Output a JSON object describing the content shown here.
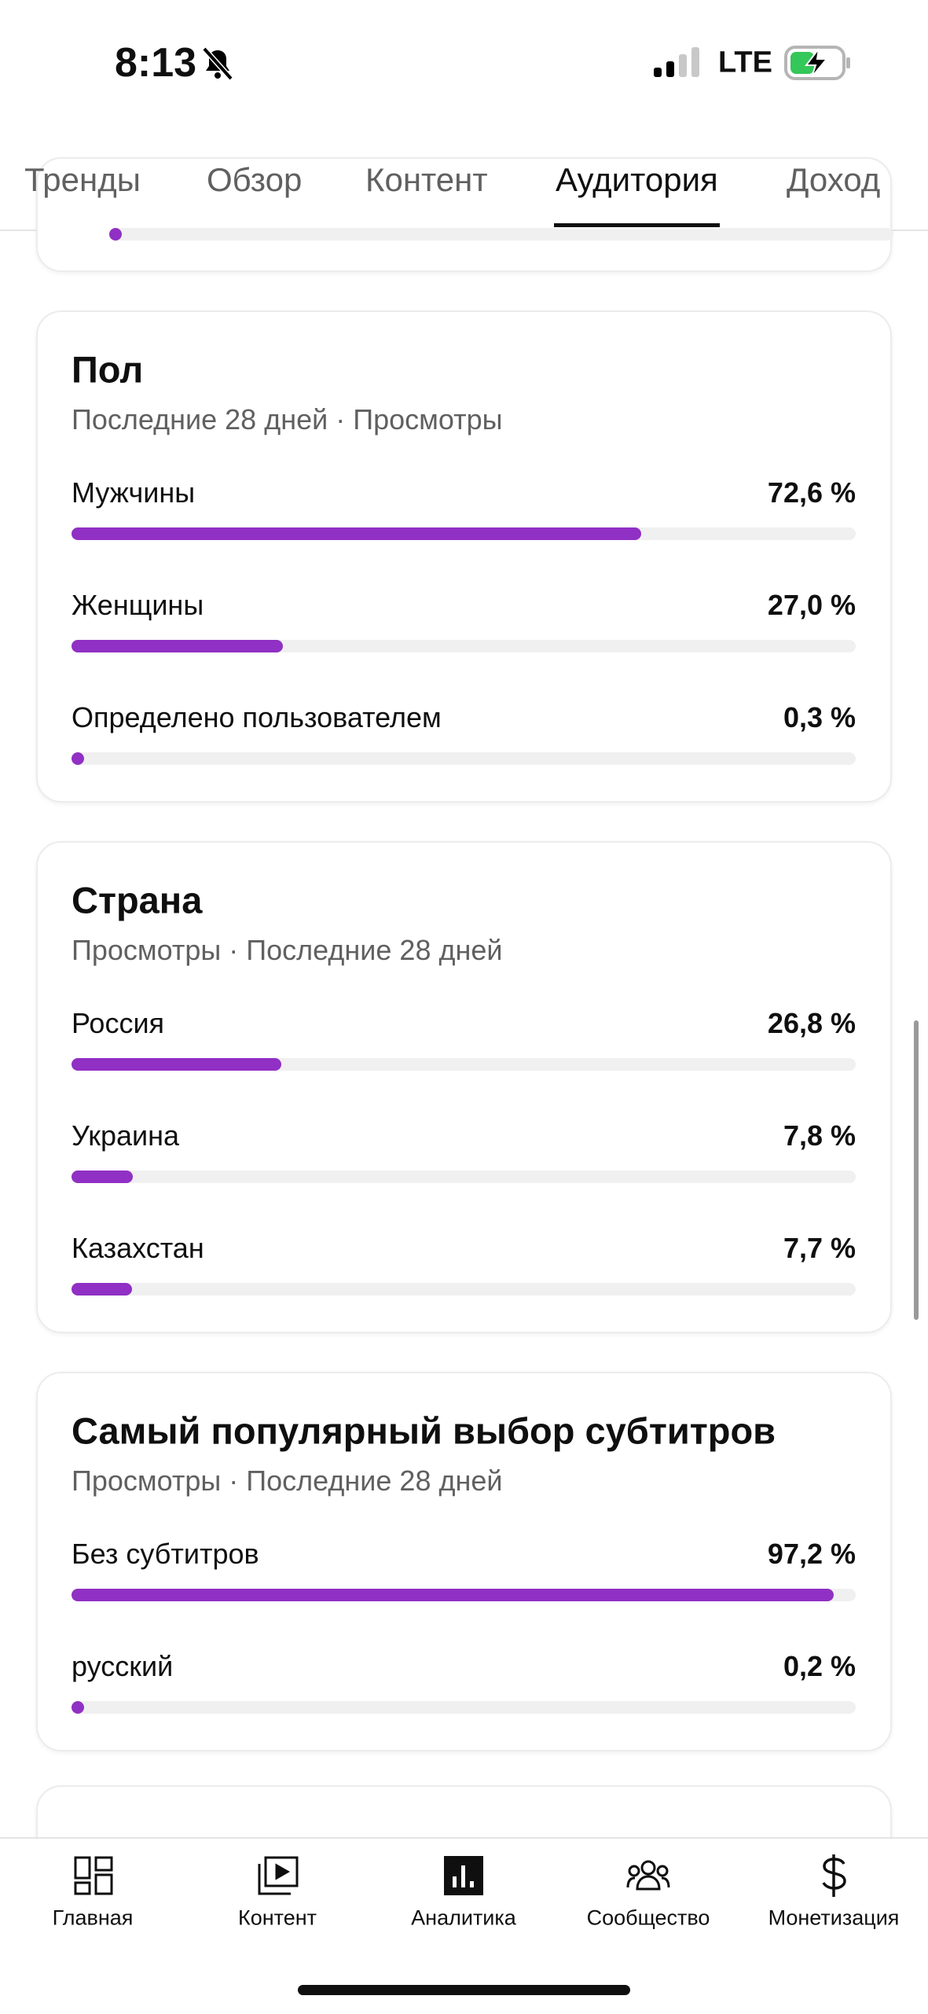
{
  "status_bar": {
    "time": "8:13",
    "network": "LTE"
  },
  "tabs": {
    "items": [
      "Тренды",
      "Обзор",
      "Контент",
      "Аудитория",
      "Доход"
    ],
    "active": 3
  },
  "top_card": {
    "value": 0.3
  },
  "cards": [
    {
      "title": "Пол",
      "subtitle": "Последние 28 дней · Просмотры",
      "rows": [
        {
          "label": "Мужчины",
          "value": 72.6,
          "value_label": "72,6 %"
        },
        {
          "label": "Женщины",
          "value": 27.0,
          "value_label": "27,0 %"
        },
        {
          "label": "Определено пользователем",
          "value": 0.3,
          "value_label": "0,3 %"
        }
      ]
    },
    {
      "title": "Страна",
      "subtitle": "Просмотры · Последние 28 дней",
      "rows": [
        {
          "label": "Россия",
          "value": 26.8,
          "value_label": "26,8 %"
        },
        {
          "label": "Украина",
          "value": 7.8,
          "value_label": "7,8 %"
        },
        {
          "label": "Казахстан",
          "value": 7.7,
          "value_label": "7,7 %"
        }
      ]
    },
    {
      "title": "Самый популярный выбор субтитров",
      "subtitle": "Просмотры · Последние 28 дней",
      "rows": [
        {
          "label": "Без субтитров",
          "value": 97.2,
          "value_label": "97,2 %"
        },
        {
          "label": "русский",
          "value": 0.2,
          "value_label": "0,2 %"
        }
      ]
    }
  ],
  "bottom_nav": {
    "items": [
      "Главная",
      "Контент",
      "Аналитика",
      "Сообщество",
      "Монетизация"
    ],
    "active": 2
  }
}
